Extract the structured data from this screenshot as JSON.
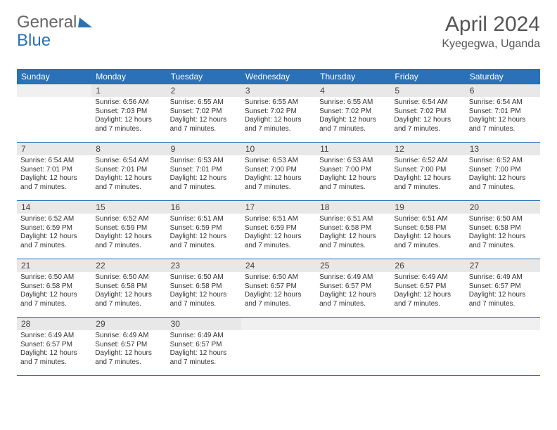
{
  "brand": {
    "part1": "General",
    "part2": "Blue",
    "color1": "#666666",
    "color2": "#2a71b8",
    "triangle_color": "#2a71b8"
  },
  "title": {
    "month": "April 2024",
    "location": "Kyegegwa, Uganda"
  },
  "colors": {
    "header_bg": "#2a71b8",
    "header_text": "#ffffff",
    "daynum_bg": "#e8e8e8",
    "week_border": "#2a71b8",
    "body_text": "#333333"
  },
  "fontsizes": {
    "title_month": 30,
    "title_loc": 16,
    "dayhead": 12,
    "daynum": 12,
    "cell": 10
  },
  "day_headers": [
    "Sunday",
    "Monday",
    "Tuesday",
    "Wednesday",
    "Thursday",
    "Friday",
    "Saturday"
  ],
  "weeks": [
    [
      {
        "day": "",
        "sunrise": "",
        "sunset": "",
        "daylight": ""
      },
      {
        "day": "1",
        "sunrise": "Sunrise: 6:56 AM",
        "sunset": "Sunset: 7:03 PM",
        "daylight": "Daylight: 12 hours and 7 minutes."
      },
      {
        "day": "2",
        "sunrise": "Sunrise: 6:55 AM",
        "sunset": "Sunset: 7:02 PM",
        "daylight": "Daylight: 12 hours and 7 minutes."
      },
      {
        "day": "3",
        "sunrise": "Sunrise: 6:55 AM",
        "sunset": "Sunset: 7:02 PM",
        "daylight": "Daylight: 12 hours and 7 minutes."
      },
      {
        "day": "4",
        "sunrise": "Sunrise: 6:55 AM",
        "sunset": "Sunset: 7:02 PM",
        "daylight": "Daylight: 12 hours and 7 minutes."
      },
      {
        "day": "5",
        "sunrise": "Sunrise: 6:54 AM",
        "sunset": "Sunset: 7:02 PM",
        "daylight": "Daylight: 12 hours and 7 minutes."
      },
      {
        "day": "6",
        "sunrise": "Sunrise: 6:54 AM",
        "sunset": "Sunset: 7:01 PM",
        "daylight": "Daylight: 12 hours and 7 minutes."
      }
    ],
    [
      {
        "day": "7",
        "sunrise": "Sunrise: 6:54 AM",
        "sunset": "Sunset: 7:01 PM",
        "daylight": "Daylight: 12 hours and 7 minutes."
      },
      {
        "day": "8",
        "sunrise": "Sunrise: 6:54 AM",
        "sunset": "Sunset: 7:01 PM",
        "daylight": "Daylight: 12 hours and 7 minutes."
      },
      {
        "day": "9",
        "sunrise": "Sunrise: 6:53 AM",
        "sunset": "Sunset: 7:01 PM",
        "daylight": "Daylight: 12 hours and 7 minutes."
      },
      {
        "day": "10",
        "sunrise": "Sunrise: 6:53 AM",
        "sunset": "Sunset: 7:00 PM",
        "daylight": "Daylight: 12 hours and 7 minutes."
      },
      {
        "day": "11",
        "sunrise": "Sunrise: 6:53 AM",
        "sunset": "Sunset: 7:00 PM",
        "daylight": "Daylight: 12 hours and 7 minutes."
      },
      {
        "day": "12",
        "sunrise": "Sunrise: 6:52 AM",
        "sunset": "Sunset: 7:00 PM",
        "daylight": "Daylight: 12 hours and 7 minutes."
      },
      {
        "day": "13",
        "sunrise": "Sunrise: 6:52 AM",
        "sunset": "Sunset: 7:00 PM",
        "daylight": "Daylight: 12 hours and 7 minutes."
      }
    ],
    [
      {
        "day": "14",
        "sunrise": "Sunrise: 6:52 AM",
        "sunset": "Sunset: 6:59 PM",
        "daylight": "Daylight: 12 hours and 7 minutes."
      },
      {
        "day": "15",
        "sunrise": "Sunrise: 6:52 AM",
        "sunset": "Sunset: 6:59 PM",
        "daylight": "Daylight: 12 hours and 7 minutes."
      },
      {
        "day": "16",
        "sunrise": "Sunrise: 6:51 AM",
        "sunset": "Sunset: 6:59 PM",
        "daylight": "Daylight: 12 hours and 7 minutes."
      },
      {
        "day": "17",
        "sunrise": "Sunrise: 6:51 AM",
        "sunset": "Sunset: 6:59 PM",
        "daylight": "Daylight: 12 hours and 7 minutes."
      },
      {
        "day": "18",
        "sunrise": "Sunrise: 6:51 AM",
        "sunset": "Sunset: 6:58 PM",
        "daylight": "Daylight: 12 hours and 7 minutes."
      },
      {
        "day": "19",
        "sunrise": "Sunrise: 6:51 AM",
        "sunset": "Sunset: 6:58 PM",
        "daylight": "Daylight: 12 hours and 7 minutes."
      },
      {
        "day": "20",
        "sunrise": "Sunrise: 6:50 AM",
        "sunset": "Sunset: 6:58 PM",
        "daylight": "Daylight: 12 hours and 7 minutes."
      }
    ],
    [
      {
        "day": "21",
        "sunrise": "Sunrise: 6:50 AM",
        "sunset": "Sunset: 6:58 PM",
        "daylight": "Daylight: 12 hours and 7 minutes."
      },
      {
        "day": "22",
        "sunrise": "Sunrise: 6:50 AM",
        "sunset": "Sunset: 6:58 PM",
        "daylight": "Daylight: 12 hours and 7 minutes."
      },
      {
        "day": "23",
        "sunrise": "Sunrise: 6:50 AM",
        "sunset": "Sunset: 6:58 PM",
        "daylight": "Daylight: 12 hours and 7 minutes."
      },
      {
        "day": "24",
        "sunrise": "Sunrise: 6:50 AM",
        "sunset": "Sunset: 6:57 PM",
        "daylight": "Daylight: 12 hours and 7 minutes."
      },
      {
        "day": "25",
        "sunrise": "Sunrise: 6:49 AM",
        "sunset": "Sunset: 6:57 PM",
        "daylight": "Daylight: 12 hours and 7 minutes."
      },
      {
        "day": "26",
        "sunrise": "Sunrise: 6:49 AM",
        "sunset": "Sunset: 6:57 PM",
        "daylight": "Daylight: 12 hours and 7 minutes."
      },
      {
        "day": "27",
        "sunrise": "Sunrise: 6:49 AM",
        "sunset": "Sunset: 6:57 PM",
        "daylight": "Daylight: 12 hours and 7 minutes."
      }
    ],
    [
      {
        "day": "28",
        "sunrise": "Sunrise: 6:49 AM",
        "sunset": "Sunset: 6:57 PM",
        "daylight": "Daylight: 12 hours and 7 minutes."
      },
      {
        "day": "29",
        "sunrise": "Sunrise: 6:49 AM",
        "sunset": "Sunset: 6:57 PM",
        "daylight": "Daylight: 12 hours and 7 minutes."
      },
      {
        "day": "30",
        "sunrise": "Sunrise: 6:49 AM",
        "sunset": "Sunset: 6:57 PM",
        "daylight": "Daylight: 12 hours and 7 minutes."
      },
      {
        "day": "",
        "sunrise": "",
        "sunset": "",
        "daylight": ""
      },
      {
        "day": "",
        "sunrise": "",
        "sunset": "",
        "daylight": ""
      },
      {
        "day": "",
        "sunrise": "",
        "sunset": "",
        "daylight": ""
      },
      {
        "day": "",
        "sunrise": "",
        "sunset": "",
        "daylight": ""
      }
    ]
  ]
}
